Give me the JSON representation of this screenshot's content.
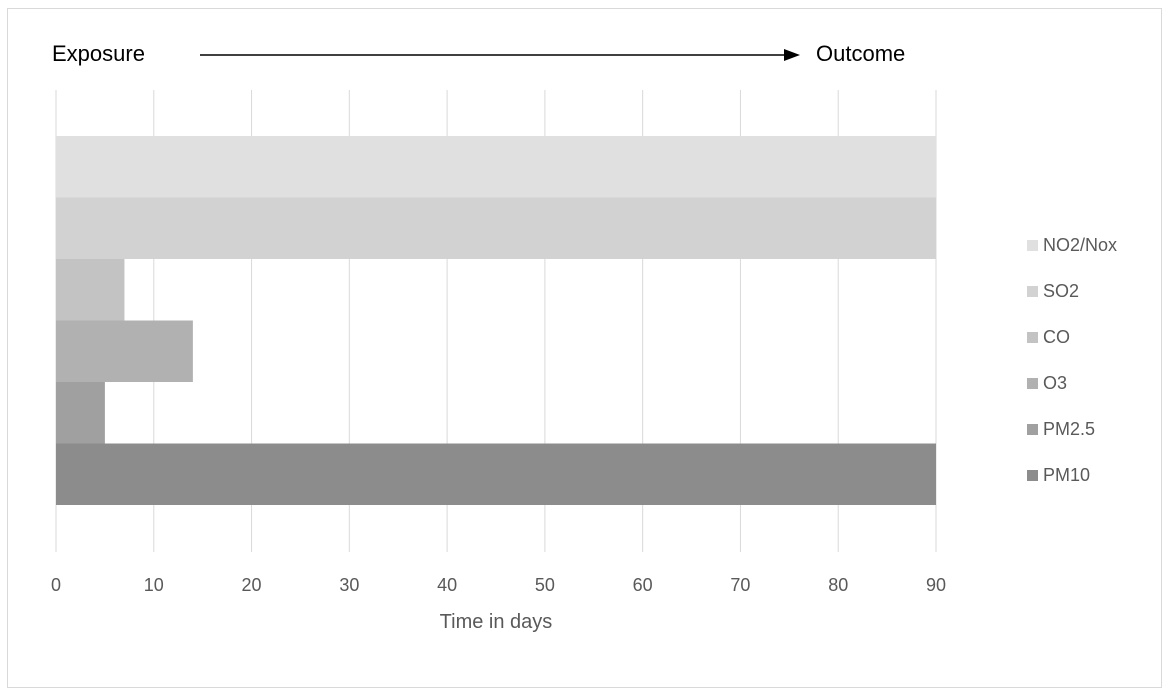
{
  "header": {
    "left_label": "Exposure",
    "right_label": "Outcome"
  },
  "chart_data": {
    "type": "bar",
    "orientation": "horizontal",
    "stacking": "none",
    "xlabel": "Time in days",
    "xlim": [
      0,
      90
    ],
    "xticks": [
      "0",
      "10",
      "20",
      "30",
      "40",
      "50",
      "60",
      "70",
      "80",
      "90"
    ],
    "grid": true,
    "legend_position": "right",
    "series": [
      {
        "name": "NO2/Nox",
        "value": 90,
        "color": "#e0e0e0"
      },
      {
        "name": "SO2",
        "value": 90,
        "color": "#d2d2d2"
      },
      {
        "name": "CO",
        "value": 7,
        "color": "#c3c3c3"
      },
      {
        "name": "O3",
        "value": 14,
        "color": "#b1b1b1"
      },
      {
        "name": "PM2.5",
        "value": 5,
        "color": "#a0a0a0"
      },
      {
        "name": "PM10",
        "value": 90,
        "color": "#8c8c8c"
      }
    ]
  }
}
